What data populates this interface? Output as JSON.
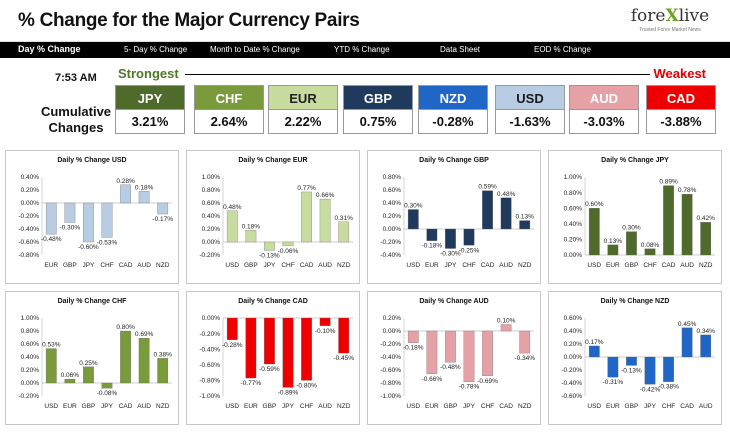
{
  "header": {
    "title": "% Change for the Major Currency Pairs",
    "logo_prefix": "fore",
    "logo_x": "X",
    "logo_suffix": "live",
    "logo_tagline": "Trusted Forex Market News"
  },
  "nav": {
    "tabs": [
      {
        "label": "Day % Change",
        "active": true
      },
      {
        "label": "5- Day % Change",
        "active": false
      },
      {
        "label": "Month to Date % Change",
        "active": false
      },
      {
        "label": "YTD % Change",
        "active": false
      },
      {
        "label": "Data Sheet",
        "active": false
      },
      {
        "label": "EOD % Change",
        "active": false
      }
    ]
  },
  "summary": {
    "time": "7:53 AM",
    "strongest_label": "Strongest",
    "weakest_label": "Weakest",
    "cumulative_label_line1": "Cumulative",
    "cumulative_label_line2": "Changes",
    "currencies": [
      {
        "name": "JPY",
        "value": "3.21%",
        "bg": "#4e6b2c",
        "fg": "#ffffff"
      },
      {
        "name": "CHF",
        "value": "2.64%",
        "bg": "#7a9b3c",
        "fg": "#ffffff"
      },
      {
        "name": "EUR",
        "value": "2.22%",
        "bg": "#c9dca0",
        "fg": "#222222"
      },
      {
        "name": "GBP",
        "value": "0.75%",
        "bg": "#1f3a5c",
        "fg": "#ffffff"
      },
      {
        "name": "NZD",
        "value": "-0.28%",
        "bg": "#1f66c6",
        "fg": "#ffffff"
      },
      {
        "name": "USD",
        "value": "-1.63%",
        "bg": "#b8cce4",
        "fg": "#1a1a1a"
      },
      {
        "name": "AUD",
        "value": "-3.03%",
        "bg": "#e6a1a6",
        "fg": "#ffffff"
      },
      {
        "name": "CAD",
        "value": "-3.88%",
        "bg": "#ee0000",
        "fg": "#ffffff"
      }
    ]
  },
  "chart_data": [
    {
      "type": "bar",
      "title": "Daily % Change USD",
      "categories": [
        "EUR",
        "GBP",
        "JPY",
        "CHF",
        "CAD",
        "AUD",
        "NZD"
      ],
      "values": [
        -0.48,
        -0.3,
        -0.6,
        -0.53,
        0.28,
        0.18,
        -0.17
      ],
      "labels": [
        "-0.48%",
        "-0.30%",
        "-0.60%",
        "-0.53%",
        "0.28%",
        "0.18%",
        "-0.17%"
      ],
      "ylim": [
        -0.8,
        0.4
      ],
      "yticks": [
        "0.40%",
        "0.20%",
        "0.00%",
        "-0.20%",
        "-0.40%",
        "-0.60%",
        "-0.80%"
      ],
      "color": "#b8cce4"
    },
    {
      "type": "bar",
      "title": "Daily % Change EUR",
      "categories": [
        "USD",
        "GBP",
        "JPY",
        "CHF",
        "CAD",
        "AUD",
        "NZD"
      ],
      "values": [
        0.48,
        0.18,
        -0.13,
        -0.06,
        0.77,
        0.66,
        0.31
      ],
      "labels": [
        "0.48%",
        "0.18%",
        "-0.13%",
        "-0.06%",
        "0.77%",
        "0.66%",
        "0.31%"
      ],
      "ylim": [
        -0.2,
        1.0
      ],
      "yticks": [
        "1.00%",
        "0.80%",
        "0.60%",
        "0.40%",
        "0.20%",
        "0.00%",
        "-0.20%"
      ],
      "color": "#c9dca0"
    },
    {
      "type": "bar",
      "title": "Daily % Change GBP",
      "categories": [
        "USD",
        "EUR",
        "JPY",
        "CHF",
        "CAD",
        "AUD",
        "NZD"
      ],
      "values": [
        0.3,
        -0.18,
        -0.3,
        -0.25,
        0.59,
        0.48,
        0.13
      ],
      "labels": [
        "0.30%",
        "-0.18%",
        "-0.30%",
        "-0.25%",
        "0.59%",
        "0.48%",
        "0.13%"
      ],
      "ylim": [
        -0.4,
        0.8
      ],
      "yticks": [
        "0.80%",
        "0.60%",
        "0.40%",
        "0.20%",
        "0.00%",
        "-0.20%",
        "-0.40%"
      ],
      "color": "#1f3a5c"
    },
    {
      "type": "bar",
      "title": "Daily % Change JPY",
      "categories": [
        "USD",
        "EUR",
        "GBP",
        "CHF",
        "CAD",
        "AUD",
        "NZD"
      ],
      "values": [
        0.6,
        0.13,
        0.3,
        0.08,
        0.89,
        0.78,
        0.42
      ],
      "labels": [
        "0.60%",
        "0.13%",
        "0.30%",
        "0.08%",
        "0.89%",
        "0.78%",
        "0.42%"
      ],
      "ylim": [
        0.0,
        1.0
      ],
      "yticks": [
        "1.00%",
        "0.80%",
        "0.60%",
        "0.40%",
        "0.20%",
        "0.00%"
      ],
      "color": "#4e6b2c"
    },
    {
      "type": "bar",
      "title": "Daily % Change CHF",
      "categories": [
        "USD",
        "EUR",
        "GBP",
        "JPY",
        "CAD",
        "AUD",
        "NZD"
      ],
      "values": [
        0.53,
        0.06,
        0.25,
        -0.08,
        0.8,
        0.69,
        0.38
      ],
      "labels": [
        "0.53%",
        "0.06%",
        "0.25%",
        "-0.08%",
        "0.80%",
        "0.69%",
        "0.38%"
      ],
      "ylim": [
        -0.2,
        1.0
      ],
      "yticks": [
        "1.00%",
        "0.80%",
        "0.60%",
        "0.40%",
        "0.20%",
        "0.00%",
        "-0.20%"
      ],
      "color": "#7a9b3c"
    },
    {
      "type": "bar",
      "title": "Daily % Change CAD",
      "categories": [
        "USD",
        "EUR",
        "GBP",
        "JPY",
        "CHF",
        "AUD",
        "NZD"
      ],
      "values": [
        -0.28,
        -0.77,
        -0.59,
        -0.89,
        -0.8,
        -0.1,
        -0.45
      ],
      "labels": [
        "-0.28%",
        "-0.77%",
        "-0.59%",
        "-0.89%",
        "-0.80%",
        "-0.10%",
        "-0.45%"
      ],
      "ylim": [
        -1.0,
        0.0
      ],
      "yticks": [
        "0.00%",
        "-0.20%",
        "-0.40%",
        "-0.60%",
        "-0.80%",
        "-1.00%"
      ],
      "color": "#ee0000"
    },
    {
      "type": "bar",
      "title": "Daily % Change AUD",
      "categories": [
        "USD",
        "EUR",
        "GBP",
        "JPY",
        "CHF",
        "CAD",
        "NZD"
      ],
      "values": [
        -0.18,
        -0.66,
        -0.48,
        -0.78,
        -0.69,
        0.1,
        -0.34
      ],
      "labels": [
        "-0.18%",
        "-0.66%",
        "-0.48%",
        "-0.78%",
        "-0.69%",
        "0.10%",
        "-0.34%"
      ],
      "ylim": [
        -1.0,
        0.2
      ],
      "yticks": [
        "0.20%",
        "0.00%",
        "-0.20%",
        "-0.40%",
        "-0.60%",
        "-0.80%",
        "-1.00%"
      ],
      "color": "#e6a1a6"
    },
    {
      "type": "bar",
      "title": "Daily % Change NZD",
      "categories": [
        "USD",
        "EUR",
        "GBP",
        "JPY",
        "CHF",
        "CAD",
        "AUD"
      ],
      "values": [
        0.17,
        -0.31,
        -0.13,
        -0.42,
        -0.38,
        0.45,
        0.34
      ],
      "labels": [
        "0.17%",
        "-0.31%",
        "-0.13%",
        "-0.42%",
        "-0.38%",
        "0.45%",
        "0.34%"
      ],
      "ylim": [
        -0.6,
        0.6
      ],
      "yticks": [
        "0.60%",
        "0.40%",
        "0.20%",
        "0.00%",
        "-0.20%",
        "-0.40%",
        "-0.60%"
      ],
      "color": "#1f66c6"
    }
  ]
}
